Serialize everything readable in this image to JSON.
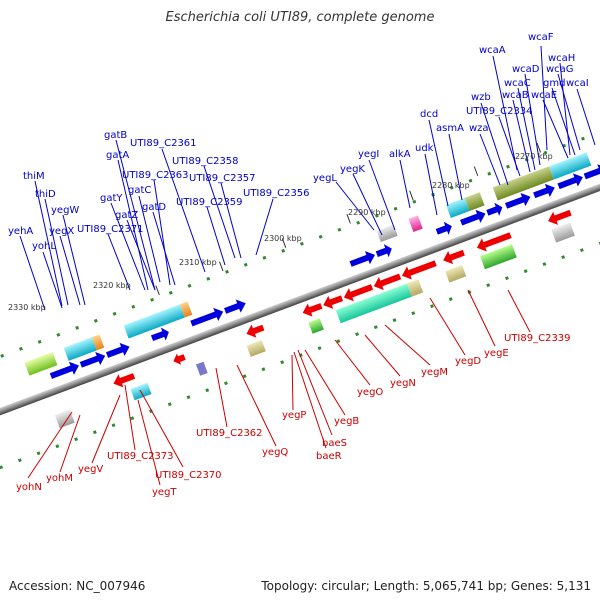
{
  "title": "Escherichia coli UTI89, complete genome",
  "footer": {
    "accession": "Accession: NC_007946",
    "topology": "Topology: circular; Length: 5,065,741 bp; Genes: 5,131"
  },
  "ticks": [
    "2270 kbp",
    "2280 kbp",
    "2290 kbp",
    "2300 kbp",
    "2310 kbp",
    "2320 kbp",
    "2330 kbp"
  ],
  "labels_top": [
    "wcaF",
    "wcaH",
    "wcaA",
    "wcaD",
    "wcaG",
    "wcaC",
    "gmd",
    "wcaI",
    "wzb",
    "wcaB",
    "wcaE",
    "UTI89_C2334",
    "dcd",
    "wza",
    "asmA",
    "udk",
    "yegI",
    "alkA",
    "yegK",
    "gatB",
    "UTI89_C2361",
    "gatA",
    "yegL",
    "UTI89_C2358",
    "UTI89_C2363",
    "UTI89_C2357",
    "thiM",
    "gatC",
    "thiD",
    "UTI89_C2359",
    "UTI89_C2356",
    "gatY",
    "yegW",
    "gatZ",
    "gatD",
    "yehA",
    "yegX",
    "UTI89_C2371",
    "yohL"
  ],
  "labels_bottom": [
    "UTI89_C2339",
    "yegE",
    "yegD",
    "yegM",
    "yegN",
    "yegO",
    "yegB",
    "yegP",
    "baeS",
    "baeR",
    "UTI89_C2362",
    "yegQ",
    "UTI89_C2373",
    "UTI89_C2370",
    "yegV",
    "yohM",
    "yegT",
    "yohN"
  ],
  "colors": {
    "forward": "#0000dd",
    "reverse": "#ee0000",
    "label_top": "#0000cc",
    "label_bottom": "#cc0000",
    "backbone": "#777777"
  }
}
